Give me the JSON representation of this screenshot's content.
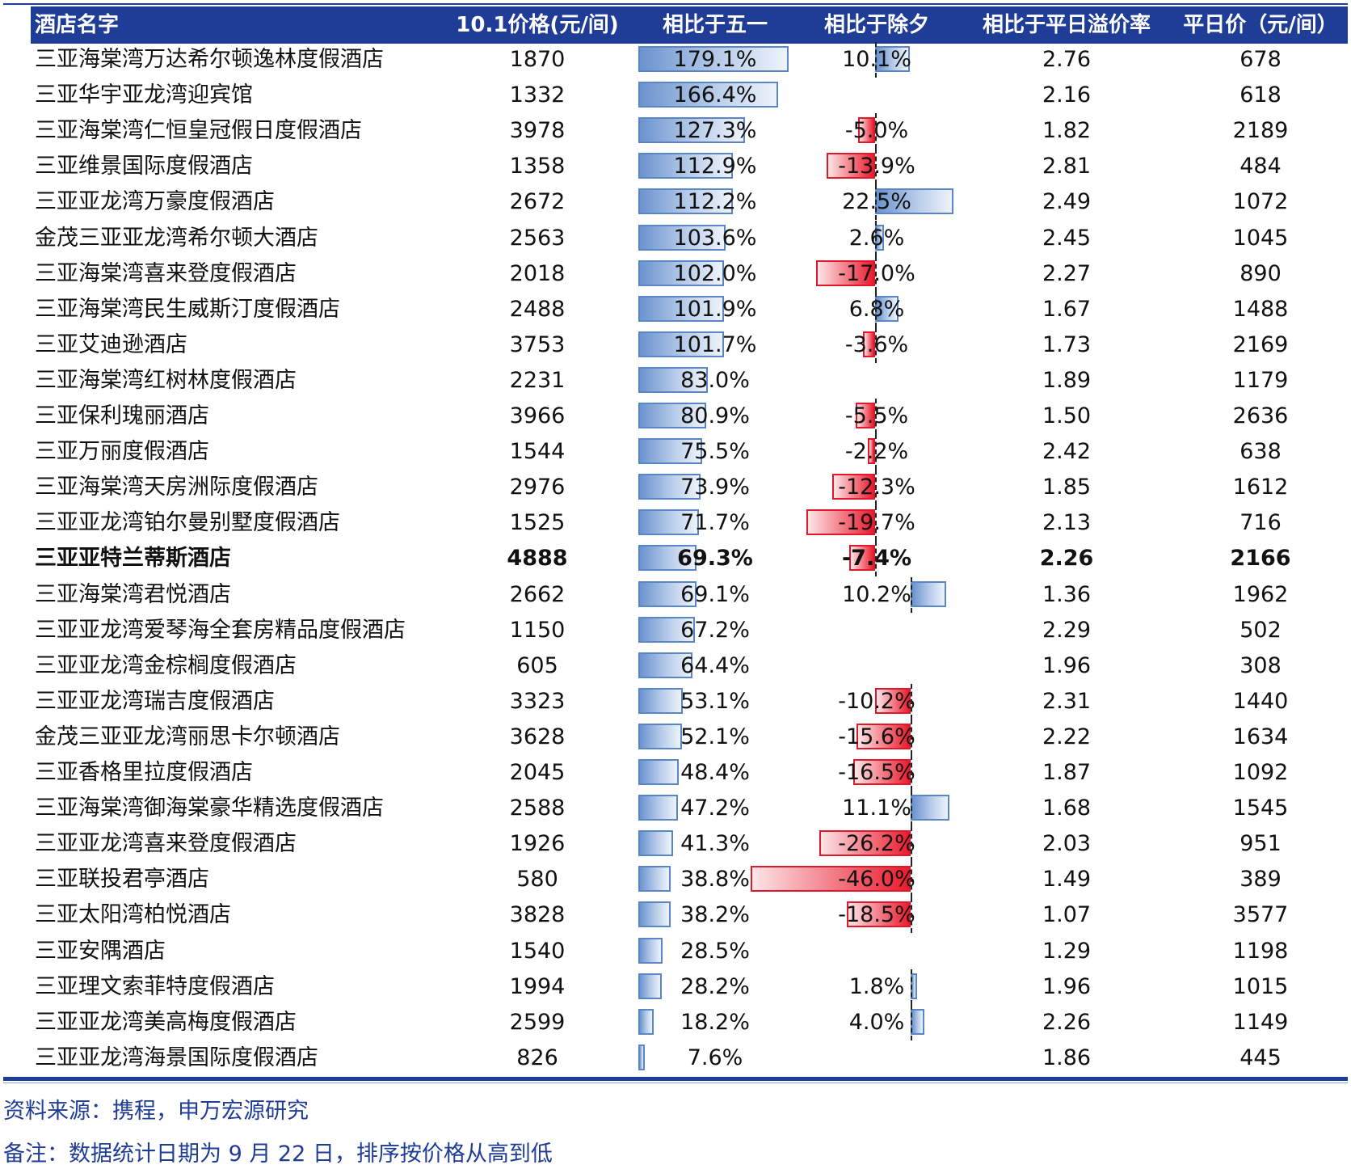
{
  "headers": {
    "name": "酒店名字",
    "price": "10.1价格(元/间)",
    "vs_may": "相比于五一",
    "vs_eve": "相比于除夕",
    "premium": "相比于平日溢价率",
    "weekday": "平日价（元/间）"
  },
  "colors": {
    "header_bg": "#1f3c96",
    "bar_positive": "#6b93cf",
    "bar_negative": "#ea1b2d",
    "note_text": "#1f3c96"
  },
  "rows": [
    {
      "name": "三亚海棠湾万达希尔顿逸林度假酒店",
      "price": "1870",
      "vs_may": "179.1%",
      "vs_may_value": 179.1,
      "vs_eve": "10.1%",
      "vs_eve_value": 10.1,
      "premium": "2.76",
      "weekday": "678"
    },
    {
      "name": "三亚华宇亚龙湾迎宾馆",
      "price": "1332",
      "vs_may": "166.4%",
      "vs_may_value": 166.4,
      "vs_eve": "",
      "vs_eve_value": null,
      "premium": "2.16",
      "weekday": "618"
    },
    {
      "name": "三亚海棠湾仁恒皇冠假日度假酒店",
      "price": "3978",
      "vs_may": "127.3%",
      "vs_may_value": 127.3,
      "vs_eve": "-5.0%",
      "vs_eve_value": -5.0,
      "premium": "1.82",
      "weekday": "2189"
    },
    {
      "name": "三亚维景国际度假酒店",
      "price": "1358",
      "vs_may": "112.9%",
      "vs_may_value": 112.9,
      "vs_eve": "-13.9%",
      "vs_eve_value": -13.9,
      "premium": "2.81",
      "weekday": "484"
    },
    {
      "name": "三亚亚龙湾万豪度假酒店",
      "price": "2672",
      "vs_may": "112.2%",
      "vs_may_value": 112.2,
      "vs_eve": "22.5%",
      "vs_eve_value": 22.5,
      "premium": "2.49",
      "weekday": "1072"
    },
    {
      "name": "金茂三亚亚龙湾希尔顿大酒店",
      "price": "2563",
      "vs_may": "103.6%",
      "vs_may_value": 103.6,
      "vs_eve": "2.6%",
      "vs_eve_value": 2.6,
      "premium": "2.45",
      "weekday": "1045"
    },
    {
      "name": "三亚海棠湾喜来登度假酒店",
      "price": "2018",
      "vs_may": "102.0%",
      "vs_may_value": 102.0,
      "vs_eve": "-17.0%",
      "vs_eve_value": -17.0,
      "premium": "2.27",
      "weekday": "890"
    },
    {
      "name": "三亚海棠湾民生威斯汀度假酒店",
      "price": "2488",
      "vs_may": "101.9%",
      "vs_may_value": 101.9,
      "vs_eve": "6.8%",
      "vs_eve_value": 6.8,
      "premium": "1.67",
      "weekday": "1488"
    },
    {
      "name": "三亚艾迪逊酒店",
      "price": "3753",
      "vs_may": "101.7%",
      "vs_may_value": 101.7,
      "vs_eve": "-3.6%",
      "vs_eve_value": -3.6,
      "premium": "1.73",
      "weekday": "2169"
    },
    {
      "name": "三亚海棠湾红树林度假酒店",
      "price": "2231",
      "vs_may": "83.0%",
      "vs_may_value": 83.0,
      "vs_eve": "",
      "vs_eve_value": null,
      "premium": "1.89",
      "weekday": "1179"
    },
    {
      "name": "三亚保利瑰丽酒店",
      "price": "3966",
      "vs_may": "80.9%",
      "vs_may_value": 80.9,
      "vs_eve": "-5.5%",
      "vs_eve_value": -5.5,
      "premium": "1.50",
      "weekday": "2636"
    },
    {
      "name": "三亚万丽度假酒店",
      "price": "1544",
      "vs_may": "75.5%",
      "vs_may_value": 75.5,
      "vs_eve": "-2.2%",
      "vs_eve_value": -2.2,
      "premium": "2.42",
      "weekday": "638"
    },
    {
      "name": "三亚海棠湾天房洲际度假酒店",
      "price": "2976",
      "vs_may": "73.9%",
      "vs_may_value": 73.9,
      "vs_eve": "-12.3%",
      "vs_eve_value": -12.3,
      "premium": "1.85",
      "weekday": "1612"
    },
    {
      "name": "三亚亚龙湾铂尔曼别墅度假酒店",
      "price": "1525",
      "vs_may": "71.7%",
      "vs_may_value": 71.7,
      "vs_eve": "-19.7%",
      "vs_eve_value": -19.7,
      "premium": "2.13",
      "weekday": "716"
    },
    {
      "name": "三亚亚特兰蒂斯酒店",
      "price": "4888",
      "vs_may": "69.3%",
      "vs_may_value": 69.3,
      "vs_eve": "-7.4%",
      "vs_eve_value": -7.4,
      "premium": "2.26",
      "weekday": "2166",
      "bold": true
    },
    {
      "name": "三亚海棠湾君悦酒店",
      "price": "2662",
      "vs_may": "69.1%",
      "vs_may_value": 69.1,
      "vs_eve": "10.2%",
      "vs_eve_value": 10.2,
      "premium": "1.36",
      "weekday": "1962"
    },
    {
      "name": "三亚亚龙湾爱琴海全套房精品度假酒店",
      "price": "1150",
      "vs_may": "67.2%",
      "vs_may_value": 67.2,
      "vs_eve": "",
      "vs_eve_value": null,
      "premium": "2.29",
      "weekday": "502"
    },
    {
      "name": "三亚亚龙湾金棕榈度假酒店",
      "price": "605",
      "vs_may": "64.4%",
      "vs_may_value": 64.4,
      "vs_eve": "",
      "vs_eve_value": null,
      "premium": "1.96",
      "weekday": "308"
    },
    {
      "name": "三亚亚龙湾瑞吉度假酒店",
      "price": "3323",
      "vs_may": "53.1%",
      "vs_may_value": 53.1,
      "vs_eve": "-10.2%",
      "vs_eve_value": -10.2,
      "premium": "2.31",
      "weekday": "1440"
    },
    {
      "name": "金茂三亚亚龙湾丽思卡尔顿酒店",
      "price": "3628",
      "vs_may": "52.1%",
      "vs_may_value": 52.1,
      "vs_eve": "-15.6%",
      "vs_eve_value": -15.6,
      "premium": "2.22",
      "weekday": "1634"
    },
    {
      "name": "三亚香格里拉度假酒店",
      "price": "2045",
      "vs_may": "48.4%",
      "vs_may_value": 48.4,
      "vs_eve": "-16.5%",
      "vs_eve_value": -16.5,
      "premium": "1.87",
      "weekday": "1092"
    },
    {
      "name": "三亚海棠湾御海棠豪华精选度假酒店",
      "price": "2588",
      "vs_may": "47.2%",
      "vs_may_value": 47.2,
      "vs_eve": "11.1%",
      "vs_eve_value": 11.1,
      "premium": "1.68",
      "weekday": "1545"
    },
    {
      "name": "三亚亚龙湾喜来登度假酒店",
      "price": "1926",
      "vs_may": "41.3%",
      "vs_may_value": 41.3,
      "vs_eve": "-26.2%",
      "vs_eve_value": -26.2,
      "premium": "2.03",
      "weekday": "951"
    },
    {
      "name": "三亚联投君亭酒店",
      "price": "580",
      "vs_may": "38.8%",
      "vs_may_value": 38.8,
      "vs_eve": "-46.0%",
      "vs_eve_value": -46.0,
      "premium": "1.49",
      "weekday": "389"
    },
    {
      "name": "三亚太阳湾柏悦酒店",
      "price": "3828",
      "vs_may": "38.2%",
      "vs_may_value": 38.2,
      "vs_eve": "-18.5%",
      "vs_eve_value": -18.5,
      "premium": "1.07",
      "weekday": "3577"
    },
    {
      "name": "三亚安隅酒店",
      "price": "1540",
      "vs_may": "28.5%",
      "vs_may_value": 28.5,
      "vs_eve": "",
      "vs_eve_value": null,
      "premium": "1.29",
      "weekday": "1198"
    },
    {
      "name": "三亚理文索菲特度假酒店",
      "price": "1994",
      "vs_may": "28.2%",
      "vs_may_value": 28.2,
      "vs_eve": "1.8%",
      "vs_eve_value": 1.8,
      "premium": "1.96",
      "weekday": "1015"
    },
    {
      "name": "三亚亚龙湾美高梅度假酒店",
      "price": "2599",
      "vs_may": "18.2%",
      "vs_may_value": 18.2,
      "vs_eve": "4.0%",
      "vs_eve_value": 4.0,
      "premium": "2.26",
      "weekday": "1149"
    },
    {
      "name": "三亚亚龙湾海景国际度假酒店",
      "price": "826",
      "vs_may": "7.6%",
      "vs_may_value": 7.6,
      "vs_eve": "",
      "vs_eve_value": null,
      "premium": "1.86",
      "weekday": "445"
    }
  ],
  "notes": {
    "source": "资料来源：携程，申万宏源研究",
    "remark": "备注：数据统计日期为 9 月 22 日，排序按价格从高到低"
  }
}
